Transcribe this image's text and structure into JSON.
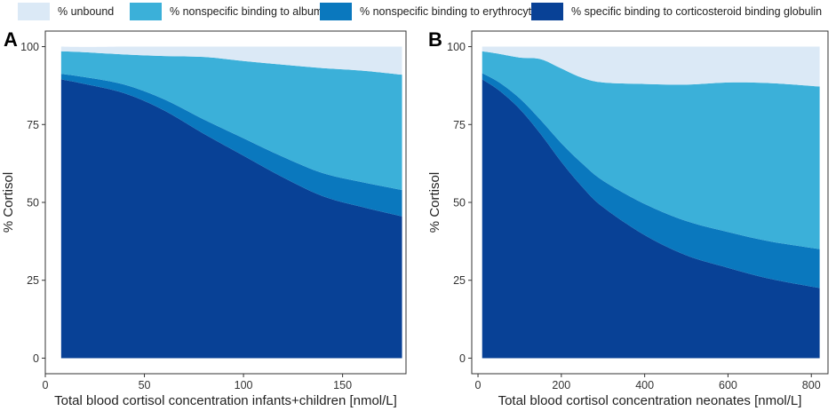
{
  "legend": [
    {
      "label": "% unbound",
      "color": "#dbe9f6"
    },
    {
      "label": "% nonspecific binding to albumin",
      "color": "#3bb0d9"
    },
    {
      "label": "% nonspecific binding to erythrocytes",
      "color": "#0a78be"
    },
    {
      "label": "% specific binding to corticosteroid binding globulin",
      "color": "#084196"
    }
  ],
  "chart_data": [
    {
      "type": "area",
      "stacked": true,
      "panel": "A",
      "xlabel": "Total blood cortisol concentration infants+children [nmol/L]",
      "ylabel": "% Cortisol",
      "xlim": [
        0,
        182
      ],
      "ylim": [
        -5,
        105
      ],
      "xticks": [
        0,
        50,
        100,
        150
      ],
      "yticks": [
        0,
        25,
        50,
        75,
        100
      ],
      "x": [
        8,
        20,
        40,
        60,
        80,
        100,
        120,
        140,
        160,
        180
      ],
      "series": [
        {
          "name": "% specific binding to corticosteroid binding globulin",
          "values": [
            89.5,
            88,
            85,
            79.5,
            72,
            65,
            58,
            52,
            48.5,
            45.5
          ]
        },
        {
          "name": "% nonspecific binding to erythrocytes",
          "values": [
            1.8,
            2.2,
            2.8,
            3.6,
            4.6,
            5.6,
            6.6,
            7.4,
            8,
            8.5
          ]
        },
        {
          "name": "% nonspecific binding to albumin",
          "values": [
            7.2,
            8,
            9.7,
            13.9,
            20.1,
            24.8,
            29.6,
            33.7,
            35.8,
            37
          ]
        },
        {
          "name": "% unbound",
          "values": [
            1.5,
            1.7,
            2.5,
            3,
            3.3,
            4.6,
            5.8,
            6.9,
            7.7,
            9
          ]
        }
      ]
    },
    {
      "type": "area",
      "stacked": true,
      "panel": "B",
      "xlabel": "Total blood cortisol concentration neonates [nmol/L]",
      "ylabel": "% Cortisol",
      "xlim": [
        -15,
        840
      ],
      "ylim": [
        -5,
        105
      ],
      "xticks": [
        0,
        200,
        400,
        600,
        800
      ],
      "yticks": [
        0,
        25,
        50,
        75,
        100
      ],
      "x": [
        10,
        50,
        100,
        150,
        200,
        250,
        300,
        400,
        500,
        600,
        700,
        820
      ],
      "series": [
        {
          "name": "% specific binding to corticosteroid binding globulin",
          "values": [
            89.5,
            86,
            80,
            72,
            63,
            55,
            48.5,
            39.5,
            33,
            29,
            25.5,
            22.5
          ]
        },
        {
          "name": "% nonspecific binding to erythrocytes",
          "values": [
            2,
            2.6,
            3.4,
            4.5,
            6,
            7.5,
            8.5,
            10,
            11,
            11.5,
            12,
            12.5
          ]
        },
        {
          "name": "% nonspecific binding to albumin",
          "values": [
            7,
            9.1,
            13.1,
            19.5,
            24,
            27.5,
            31.5,
            38.5,
            43.8,
            48,
            50.8,
            52.2
          ]
        },
        {
          "name": "% unbound",
          "values": [
            1.5,
            2.3,
            3.5,
            4,
            7,
            10,
            11.5,
            12,
            12.2,
            11.5,
            11.7,
            12.8
          ]
        }
      ]
    }
  ]
}
